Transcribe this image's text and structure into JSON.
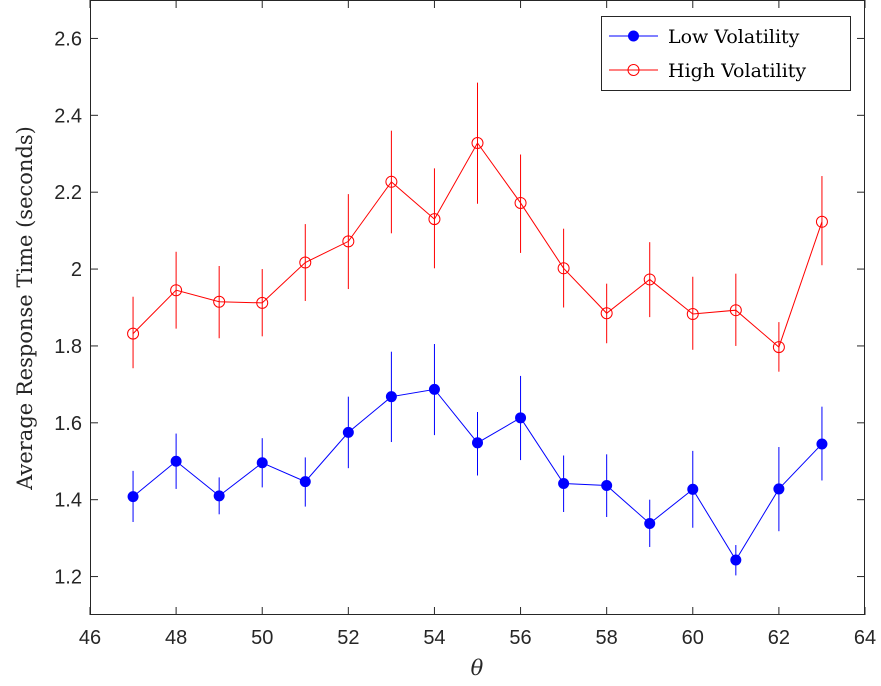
{
  "chart_data": {
    "type": "line",
    "title": "",
    "xlabel": "θ",
    "ylabel": "Average Response Time (seconds)",
    "xlim": [
      46,
      64
    ],
    "ylim": [
      1.1,
      2.7
    ],
    "xticks": [
      46,
      48,
      50,
      52,
      54,
      56,
      58,
      60,
      62,
      64
    ],
    "yticks": [
      1.2,
      1.4,
      1.6,
      1.8,
      2,
      2.2,
      2.4,
      2.6
    ],
    "ytick_labels": [
      "1.2",
      "1.4",
      "1.6",
      "1.8",
      "2",
      "2.2",
      "2.4",
      "2.6"
    ],
    "grid": false,
    "legend_position": "top-right",
    "x": [
      47,
      48,
      49,
      50,
      51,
      52,
      53,
      54,
      55,
      56,
      57,
      58,
      59,
      60,
      61,
      62,
      63
    ],
    "series": [
      {
        "name": "Low Volatility",
        "color": "#0000ff",
        "marker": "filled-circle",
        "values": [
          1.408,
          1.5,
          1.41,
          1.496,
          1.447,
          1.575,
          1.668,
          1.687,
          1.548,
          1.613,
          1.442,
          1.437,
          1.338,
          1.427,
          1.243,
          1.428,
          1.545
        ],
        "err_low": [
          1.342,
          1.428,
          1.362,
          1.432,
          1.382,
          1.482,
          1.55,
          1.568,
          1.463,
          1.503,
          1.368,
          1.355,
          1.277,
          1.327,
          1.203,
          1.318,
          1.45
        ],
        "err_high": [
          1.475,
          1.572,
          1.458,
          1.56,
          1.51,
          1.668,
          1.785,
          1.805,
          1.628,
          1.722,
          1.515,
          1.518,
          1.4,
          1.527,
          1.282,
          1.537,
          1.642
        ]
      },
      {
        "name": "High Volatility",
        "color": "#ff0000",
        "marker": "open-circle",
        "values": [
          1.832,
          1.945,
          1.915,
          1.912,
          2.017,
          2.072,
          2.227,
          2.13,
          2.328,
          2.172,
          2.002,
          1.885,
          1.973,
          1.883,
          1.893,
          1.797,
          2.123
        ],
        "err_low": [
          1.742,
          1.845,
          1.82,
          1.825,
          1.917,
          1.948,
          2.093,
          2.002,
          2.17,
          2.042,
          1.9,
          1.807,
          1.875,
          1.79,
          1.8,
          1.733,
          2.01
        ],
        "err_high": [
          1.928,
          2.045,
          2.008,
          2.0,
          2.117,
          2.195,
          2.36,
          2.262,
          2.485,
          2.298,
          2.105,
          1.962,
          2.07,
          1.98,
          1.988,
          1.862,
          2.242
        ]
      }
    ]
  }
}
